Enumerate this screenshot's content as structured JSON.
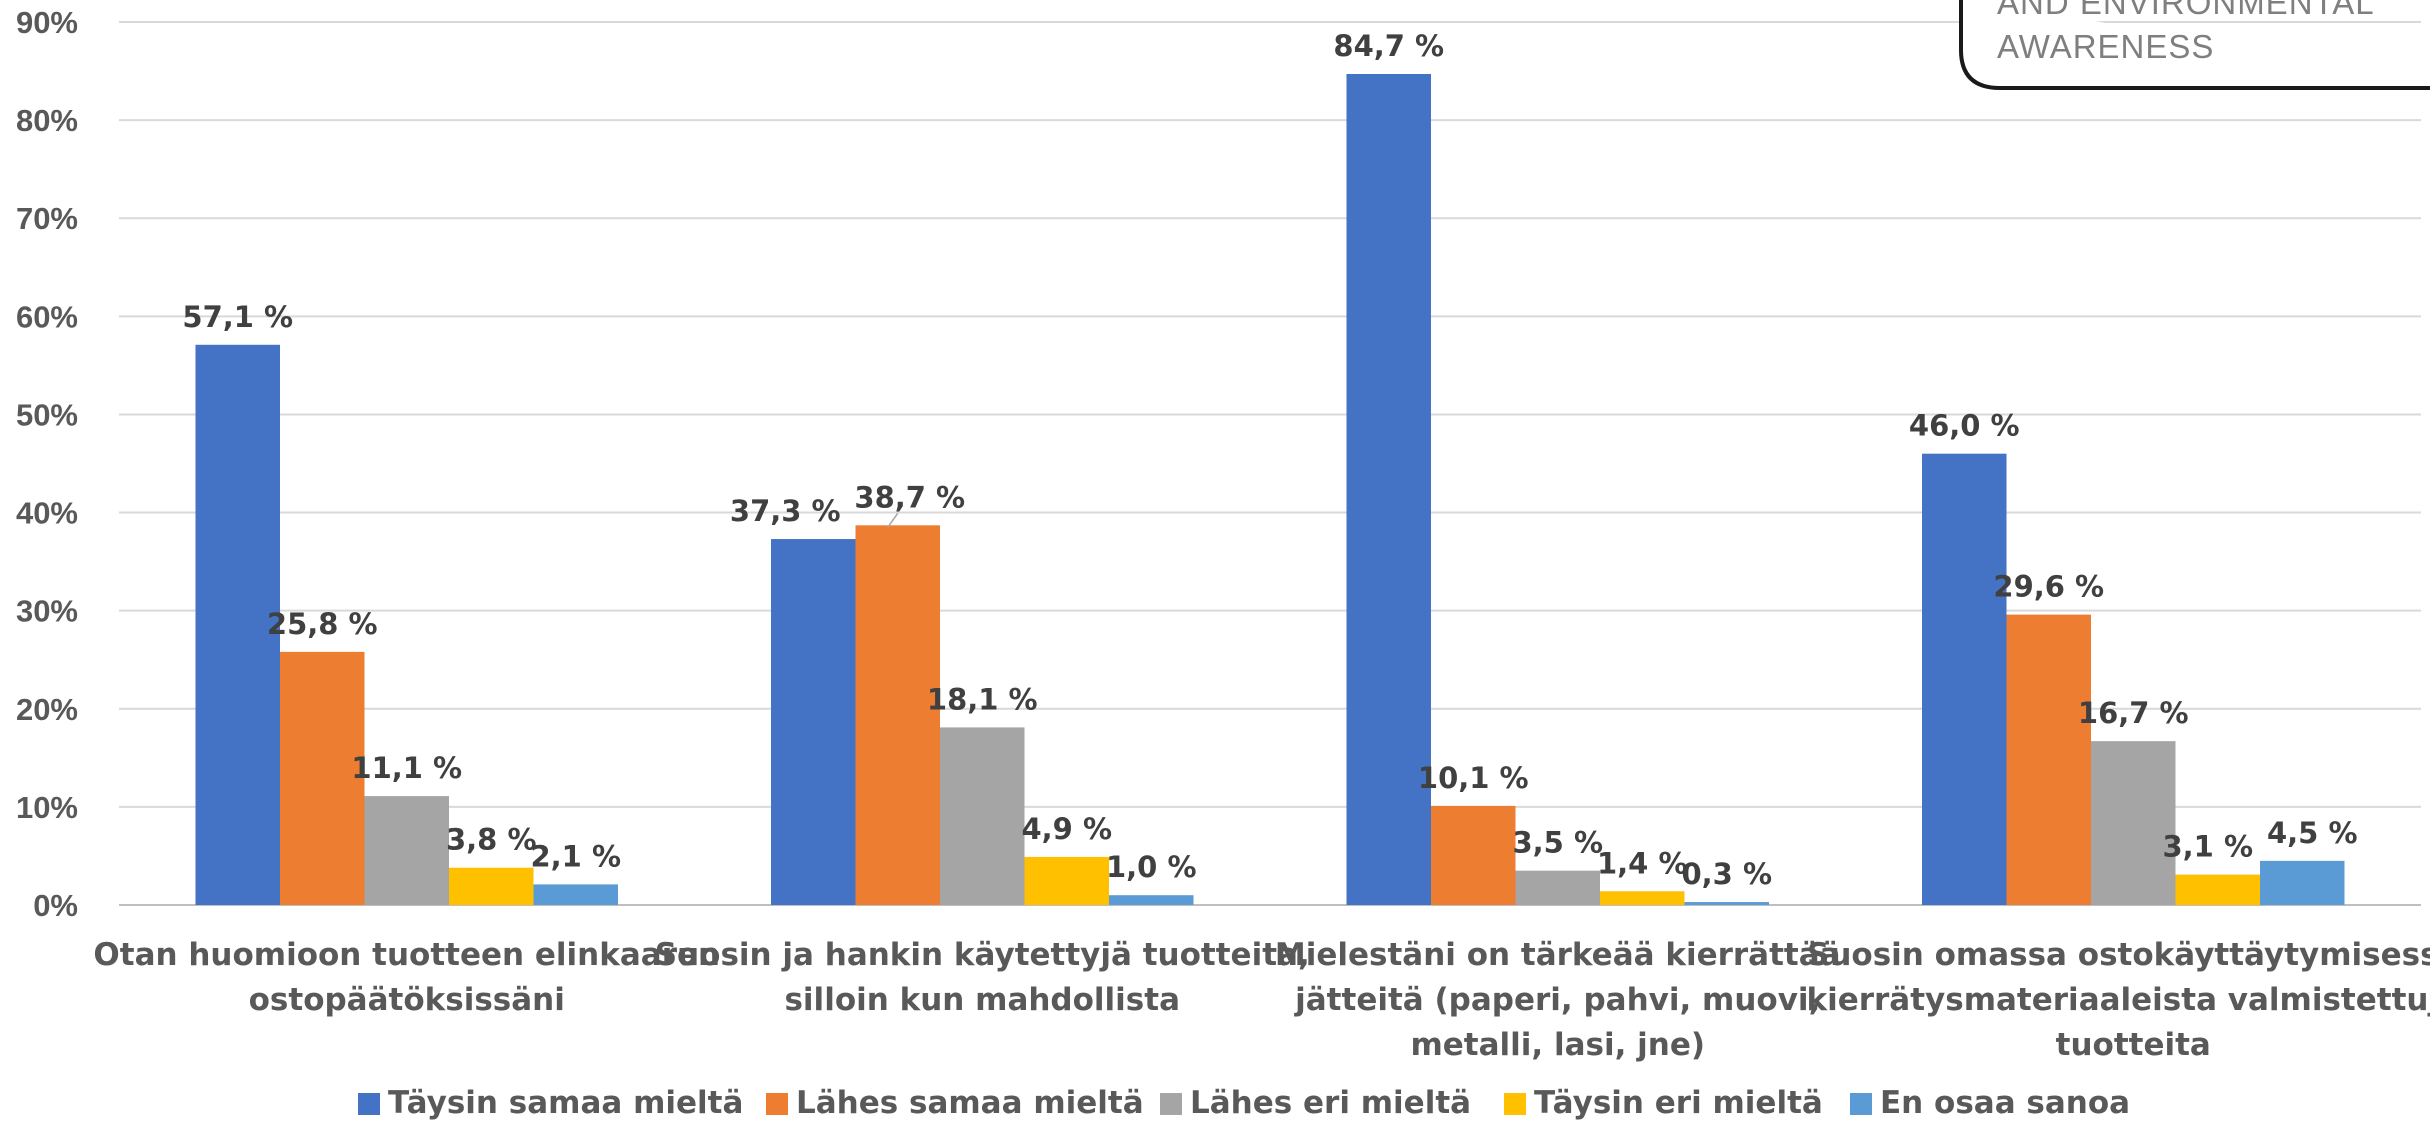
{
  "chart_data": {
    "type": "bar",
    "title": "",
    "xlabel": "",
    "ylabel": "",
    "ylim": [
      0,
      0.9
    ],
    "yticks": [
      "0%",
      "10%",
      "20%",
      "30%",
      "40%",
      "50%",
      "60%",
      "70%",
      "80%",
      "90%"
    ],
    "grid": true,
    "legend_position": "bottom",
    "categories": [
      [
        "Otan huomioon tuotteen elinkaaren",
        "ostopäätöksissäni"
      ],
      [
        "Suosin ja hankin käytettyjä tuotteita,",
        "silloin kun mahdollista"
      ],
      [
        "Mielestäni on tärkeää kierrättää",
        "jätteitä (paperi, pahvi, muovi,",
        "metalli, lasi, jne)"
      ],
      [
        "Suosin omassa ostokäyttäytymisessä",
        "kierrätysmateriaaleista valmistettuja",
        "tuotteita"
      ]
    ],
    "series": [
      {
        "name": "Täysin samaa mieltä",
        "color": "#4472C4",
        "values": [
          0.571,
          0.373,
          0.847,
          0.46
        ],
        "labels": [
          "57,1 %",
          "37,3 %",
          "84,7 %",
          "46,0 %"
        ]
      },
      {
        "name": "Lähes samaa mieltä",
        "color": "#ED7D31",
        "values": [
          0.258,
          0.387,
          0.101,
          0.296
        ],
        "labels": [
          "25,8 %",
          "38,7 %",
          "10,1 %",
          "29,6 %"
        ]
      },
      {
        "name": "Lähes eri mieltä",
        "color": "#A5A5A5",
        "values": [
          0.111,
          0.181,
          0.035,
          0.167
        ],
        "labels": [
          "11,1 %",
          "18,1 %",
          "3,5 %",
          "16,7 %"
        ]
      },
      {
        "name": "Täysin eri mieltä",
        "color": "#FFC000",
        "values": [
          0.038,
          0.049,
          0.014,
          0.031
        ],
        "labels": [
          "3,8 %",
          "4,9 %",
          "1,4 %",
          "3,1 %"
        ]
      },
      {
        "name": "En osaa sanoa",
        "color": "#5B9BD5",
        "values": [
          0.021,
          0.01,
          0.003,
          0.045
        ],
        "labels": [
          "2,1 %",
          "1,0 %",
          "0,3 %",
          "4,5 %"
        ]
      }
    ]
  },
  "stamp": {
    "lines": [
      "AND ENVIRONMENTAL",
      "AWARENESS"
    ]
  }
}
